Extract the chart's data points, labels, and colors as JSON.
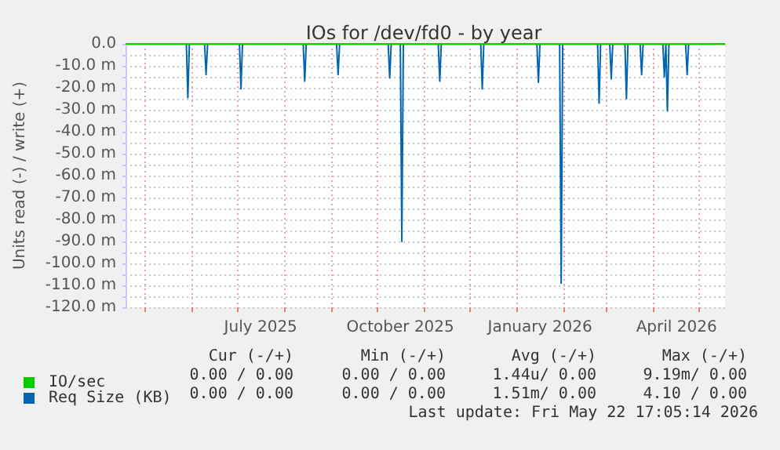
{
  "chart_data": {
    "type": "line",
    "title": "IOs for /dev/fd0 - by year",
    "ylabel": "Units read (-) / write (+)",
    "xlim": [
      "2025-04-18",
      "2026-05-18"
    ],
    "xticks": [
      {
        "value": "2025-07-16",
        "label": "July 2025"
      },
      {
        "value": "2025-10-16",
        "label": "October 2025"
      },
      {
        "value": "2026-01-16",
        "label": "January 2026"
      },
      {
        "value": "2026-04-16",
        "label": "April 2026"
      },
      {
        "value": "2025-05-01",
        "label": null
      },
      {
        "value": "2025-06-01",
        "label": null
      },
      {
        "value": "2025-07-01",
        "label": null
      },
      {
        "value": "2025-08-01",
        "label": null
      },
      {
        "value": "2025-09-01",
        "label": null
      },
      {
        "value": "2025-10-01",
        "label": null
      },
      {
        "value": "2025-11-01",
        "label": null
      },
      {
        "value": "2025-12-01",
        "label": null
      },
      {
        "value": "2026-01-01",
        "label": null
      },
      {
        "value": "2026-02-01",
        "label": null
      },
      {
        "value": "2026-03-01",
        "label": null
      },
      {
        "value": "2026-04-01",
        "label": null
      },
      {
        "value": "2026-05-01",
        "label": null
      }
    ],
    "ylim": [
      -120,
      0
    ],
    "yticks": [
      {
        "value": 0,
        "label": "0.0"
      },
      {
        "value": -5,
        "label": null
      },
      {
        "value": -10,
        "label": "-10.0 m"
      },
      {
        "value": -15,
        "label": null
      },
      {
        "value": -20,
        "label": "-20.0 m"
      },
      {
        "value": -25,
        "label": null
      },
      {
        "value": -30,
        "label": "-30.0 m"
      },
      {
        "value": -35,
        "label": null
      },
      {
        "value": -40,
        "label": "-40.0 m"
      },
      {
        "value": -45,
        "label": null
      },
      {
        "value": -50,
        "label": "-50.0 m"
      },
      {
        "value": -55,
        "label": null
      },
      {
        "value": -60,
        "label": "-60.0 m"
      },
      {
        "value": -65,
        "label": null
      },
      {
        "value": -70,
        "label": "-70.0 m"
      },
      {
        "value": -75,
        "label": null
      },
      {
        "value": -80,
        "label": "-80.0 m"
      },
      {
        "value": -85,
        "label": null
      },
      {
        "value": -90,
        "label": "-90.0 m"
      },
      {
        "value": -95,
        "label": null
      },
      {
        "value": -100,
        "label": "-100.0 m"
      },
      {
        "value": -105,
        "label": null
      },
      {
        "value": -110,
        "label": "-110.0 m"
      },
      {
        "value": -115,
        "label": null
      },
      {
        "value": -120,
        "label": "-120.0 m"
      }
    ],
    "grid": true,
    "legend": "bottom left",
    "marker": "none",
    "line_style": "solid",
    "series": [
      {
        "name": "Req Size (KB)",
        "color": "#0066b3",
        "x": [
          "2025-05-28",
          "2025-05-29",
          "2025-05-30",
          "2025-06-09",
          "2025-06-10",
          "2025-06-11",
          "2025-07-02",
          "2025-07-03",
          "2025-07-04",
          "2025-08-13",
          "2025-08-14",
          "2025-08-15",
          "2025-09-04",
          "2025-09-05",
          "2025-09-06",
          "2025-10-08",
          "2025-10-09",
          "2025-10-10",
          "2025-10-16",
          "2025-10-17",
          "2025-10-18",
          "2025-11-10",
          "2025-11-11",
          "2025-11-12",
          "2025-12-08",
          "2025-12-09",
          "2025-12-10",
          "2026-01-14",
          "2026-01-15",
          "2026-01-16",
          "2026-01-29",
          "2026-01-30",
          "2026-01-31",
          "2026-02-23",
          "2026-02-24",
          "2026-02-25",
          "2026-03-03",
          "2026-03-04",
          "2026-03-05",
          "2026-03-13",
          "2026-03-14",
          "2026-03-15",
          "2026-03-23",
          "2026-03-24",
          "2026-03-25",
          "2026-04-07",
          "2026-04-08",
          "2026-04-09",
          "2026-04-10",
          "2026-04-11",
          "2026-04-22",
          "2026-04-23",
          "2026-04-24"
        ],
        "values": [
          0,
          -24.5,
          0,
          0,
          -14,
          0,
          0,
          -20.5,
          0,
          0,
          -17,
          0,
          0,
          -14,
          0,
          0,
          -15.5,
          0,
          0,
          -90,
          0,
          0,
          -17,
          0,
          0,
          -20.5,
          0,
          0,
          -17.5,
          0,
          0,
          -109,
          0,
          0,
          -27,
          0,
          0,
          -16,
          0,
          0,
          -25,
          0,
          0,
          -14,
          0,
          0,
          -15,
          0,
          -30.5,
          0,
          0,
          -14,
          0
        ]
      },
      {
        "name": "IO/sec",
        "color": "#00cc00",
        "x": [
          "2025-04-18",
          "2026-05-18"
        ],
        "values": [
          0,
          0
        ]
      }
    ],
    "annotations": [
      "Cur (-/+)",
      "Min (-/+)",
      "Avg (-/+)",
      "Max (-/+)",
      "0.00 / 0.00",
      "0.00 / 0.00",
      "1.44u/ 0.00",
      "9.19m/ 0.00",
      "0.00 / 0.00",
      "0.00 / 0.00",
      "1.51m/ 0.00",
      "4.10 / 0.00",
      "Last update: Fri May 22 17:05:14 2026"
    ]
  }
}
